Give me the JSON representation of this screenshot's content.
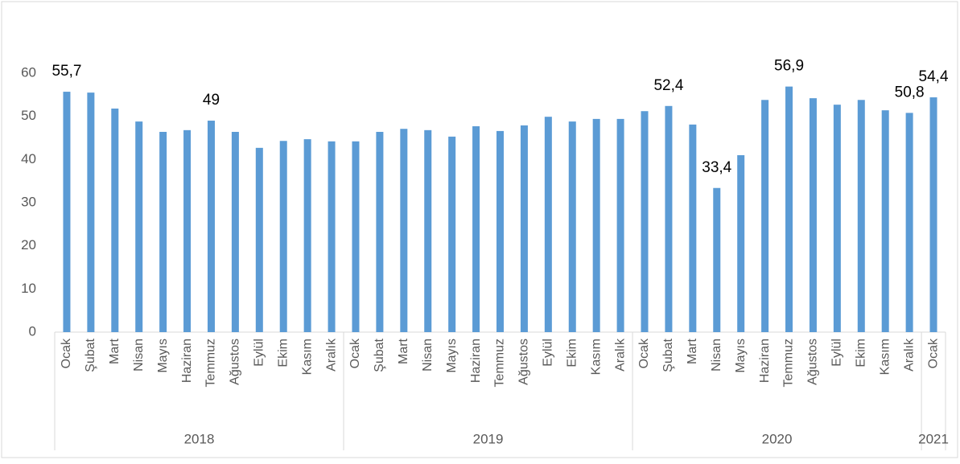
{
  "chart_data": {
    "type": "bar",
    "color": "#5b9bd5",
    "groups": [
      {
        "label": "2018",
        "categories": [
          "Ocak",
          "Şubat",
          "Mart",
          "Nisan",
          "Mayıs",
          "Haziran",
          "Temmuz",
          "Ağustos",
          "Eylül",
          "Ekim",
          "Kasım",
          "Aralık"
        ]
      },
      {
        "label": "2019",
        "categories": [
          "Ocak",
          "Şubat",
          "Mart",
          "Nisan",
          "Mayıs",
          "Haziran",
          "Temmuz",
          "Ağustos",
          "Eylül",
          "Ekim",
          "Kasım",
          "Aralık"
        ]
      },
      {
        "label": "2020",
        "categories": [
          "Ocak",
          "Şubat",
          "Mart",
          "Nisan",
          "Mayıs",
          "Haziran",
          "Temmuz",
          "Ağustos",
          "Eylül",
          "Ekim",
          "Kasım",
          "Aralık"
        ]
      },
      {
        "label": "2021",
        "categories": [
          "Ocak"
        ]
      }
    ],
    "values": [
      55.7,
      55.5,
      51.8,
      48.8,
      46.4,
      46.8,
      49,
      46.4,
      42.7,
      44.3,
      44.7,
      44.2,
      44.2,
      46.4,
      47.1,
      46.8,
      45.3,
      47.7,
      46.6,
      47.9,
      49.9,
      48.8,
      49.4,
      49.4,
      51.2,
      52.4,
      48.1,
      33.4,
      41.0,
      53.8,
      56.9,
      54.2,
      52.7,
      53.8,
      51.4,
      50.8,
      54.4
    ],
    "value_labels": [
      "55,7",
      null,
      null,
      null,
      null,
      null,
      "49",
      null,
      null,
      null,
      null,
      null,
      null,
      null,
      null,
      null,
      null,
      null,
      null,
      null,
      null,
      null,
      null,
      null,
      null,
      "52,4",
      null,
      "33,4",
      null,
      null,
      "56,9",
      null,
      null,
      null,
      null,
      "50,8",
      "54,4"
    ],
    "ylim": [
      0,
      60
    ],
    "yticks": [
      0,
      10,
      20,
      30,
      40,
      50,
      60
    ],
    "grid": false
  }
}
